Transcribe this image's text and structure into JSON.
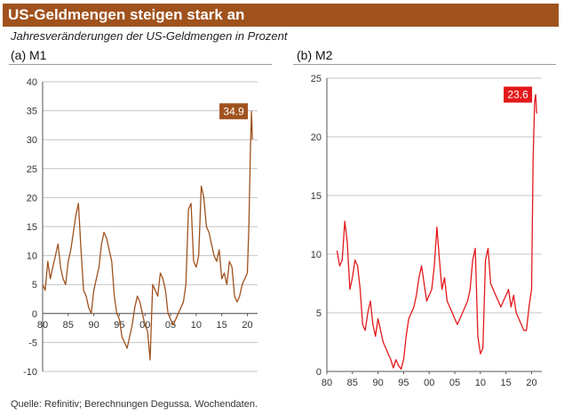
{
  "header": {
    "title": "US-Geldmengen steigen stark an",
    "subtitle": "Jahresveränderungen der US-Geldmengen in Prozent"
  },
  "footer": {
    "source": "Quelle: Refinitiv; Berechnungen Degussa. Wochendaten."
  },
  "colors": {
    "m1": "#a0521d",
    "m2": "#e3191b",
    "title_bg": "#a0521d"
  },
  "chart_data": [
    {
      "type": "line",
      "panel_label": "(a) M1",
      "title": "",
      "xlabel": "",
      "ylabel": "",
      "xlim": [
        1980,
        2022
      ],
      "ylim": [
        -10,
        40
      ],
      "x_ticks": [
        1980,
        1985,
        1990,
        1995,
        2000,
        2005,
        2010,
        2015,
        2020
      ],
      "x_tick_labels": [
        "80",
        "85",
        "90",
        "95",
        "00",
        "05",
        "10",
        "15",
        "20"
      ],
      "y_ticks": [
        -10,
        -5,
        0,
        5,
        10,
        15,
        20,
        25,
        30,
        35,
        40
      ],
      "y_tick_labels": [
        "-10",
        "-5",
        "0",
        "5",
        "10",
        "15",
        "20",
        "25",
        "30",
        "35",
        "40"
      ],
      "grid": "horizontal",
      "annotation": {
        "text": "34.9",
        "x": 2020.8,
        "y": 34.9
      },
      "series": [
        {
          "color": "#a0521d",
          "x": [
            1980,
            1980.5,
            1981,
            1981.5,
            1982,
            1982.5,
            1983,
            1983.5,
            1984,
            1984.5,
            1985,
            1985.5,
            1986,
            1986.5,
            1987,
            1987.5,
            1988,
            1988.5,
            1989,
            1989.5,
            1990,
            1990.5,
            1991,
            1991.5,
            1992,
            1992.5,
            1993,
            1993.5,
            1994,
            1994.5,
            1995,
            1995.5,
            1996,
            1996.5,
            1997,
            1997.5,
            1998,
            1998.5,
            1999,
            1999.5,
            2000,
            2000.5,
            2001,
            2001.5,
            2002,
            2002.5,
            2003,
            2003.5,
            2004,
            2004.5,
            2005,
            2005.5,
            2006,
            2006.5,
            2007,
            2007.5,
            2008,
            2008.5,
            2009,
            2009.5,
            2010,
            2010.5,
            2011,
            2011.5,
            2012,
            2012.5,
            2013,
            2013.5,
            2014,
            2014.5,
            2015,
            2015.5,
            2016,
            2016.5,
            2017,
            2017.5,
            2018,
            2018.5,
            2019,
            2019.5,
            2020,
            2020.3,
            2020.6,
            2020.8,
            2021
          ],
          "values": [
            5,
            4,
            9,
            6,
            8,
            10,
            12,
            8,
            6,
            5,
            9,
            11,
            14,
            17,
            19,
            11,
            4,
            3,
            1,
            0,
            4,
            6,
            8,
            12,
            14,
            13,
            11,
            9,
            3,
            0,
            -1,
            -4,
            -5,
            -6,
            -4,
            -2,
            1,
            3,
            2,
            0,
            -2,
            -3,
            -8,
            5,
            4,
            3,
            7,
            6,
            4,
            0,
            -1,
            -2,
            -1,
            0,
            1,
            2,
            5,
            18,
            19,
            9,
            8,
            10,
            22,
            20,
            15,
            14,
            12,
            10,
            9,
            11,
            6,
            7,
            5,
            9,
            8,
            3,
            2,
            3,
            5,
            6,
            7,
            15,
            28,
            34.9,
            30
          ]
        }
      ]
    },
    {
      "type": "line",
      "panel_label": "(b) M2",
      "title": "",
      "xlabel": "",
      "ylabel": "",
      "xlim": [
        1980,
        2022
      ],
      "ylim": [
        0,
        25
      ],
      "x_ticks": [
        1980,
        1985,
        1990,
        1995,
        2000,
        2005,
        2010,
        2015,
        2020
      ],
      "x_tick_labels": [
        "80",
        "85",
        "90",
        "95",
        "00",
        "05",
        "10",
        "15",
        "20"
      ],
      "y_ticks": [
        0,
        5,
        10,
        15,
        20,
        25
      ],
      "y_tick_labels": [
        "0",
        "5",
        "10",
        "15",
        "20",
        "25"
      ],
      "grid": "horizontal",
      "annotation": {
        "text": "23.6",
        "x": 2020.8,
        "y": 23.6
      },
      "series": [
        {
          "color": "#e3191b",
          "x": [
            1982,
            1982.5,
            1983,
            1983.5,
            1984,
            1984.5,
            1985,
            1985.5,
            1986,
            1986.5,
            1987,
            1987.5,
            1988,
            1988.5,
            1989,
            1989.5,
            1990,
            1990.5,
            1991,
            1991.5,
            1992,
            1992.5,
            1993,
            1993.5,
            1994,
            1994.5,
            1995,
            1995.5,
            1996,
            1996.5,
            1997,
            1997.5,
            1998,
            1998.5,
            1999,
            1999.5,
            2000,
            2000.5,
            2001,
            2001.5,
            2002,
            2002.5,
            2003,
            2003.5,
            2004,
            2004.5,
            2005,
            2005.5,
            2006,
            2006.5,
            2007,
            2007.5,
            2008,
            2008.5,
            2009,
            2009.5,
            2010,
            2010.5,
            2011,
            2011.5,
            2012,
            2012.5,
            2013,
            2013.5,
            2014,
            2014.5,
            2015,
            2015.5,
            2016,
            2016.5,
            2017,
            2017.5,
            2018,
            2018.5,
            2019,
            2019.5,
            2020,
            2020.3,
            2020.6,
            2020.8,
            2021
          ],
          "values": [
            10.3,
            9,
            9.5,
            12.8,
            11,
            7,
            8,
            9.5,
            9,
            7,
            4,
            3.5,
            5,
            6,
            4,
            3,
            4.5,
            3.5,
            2.5,
            2,
            1.5,
            1,
            0.3,
            1,
            0.5,
            0.2,
            1,
            3,
            4.5,
            5,
            5.5,
            6.5,
            8,
            9,
            7.5,
            6,
            6.5,
            7,
            9,
            12.3,
            9.5,
            7,
            8,
            6,
            5.5,
            5,
            4.5,
            4,
            4.5,
            5,
            5.5,
            6,
            7,
            9.5,
            10.5,
            3,
            1.5,
            2,
            9.5,
            10.5,
            7.5,
            7,
            6.5,
            6,
            5.5,
            6,
            6.5,
            7,
            5.5,
            6.5,
            5,
            4.5,
            4,
            3.5,
            3.5,
            5.5,
            7,
            18,
            23,
            23.6,
            22
          ]
        }
      ]
    }
  ]
}
